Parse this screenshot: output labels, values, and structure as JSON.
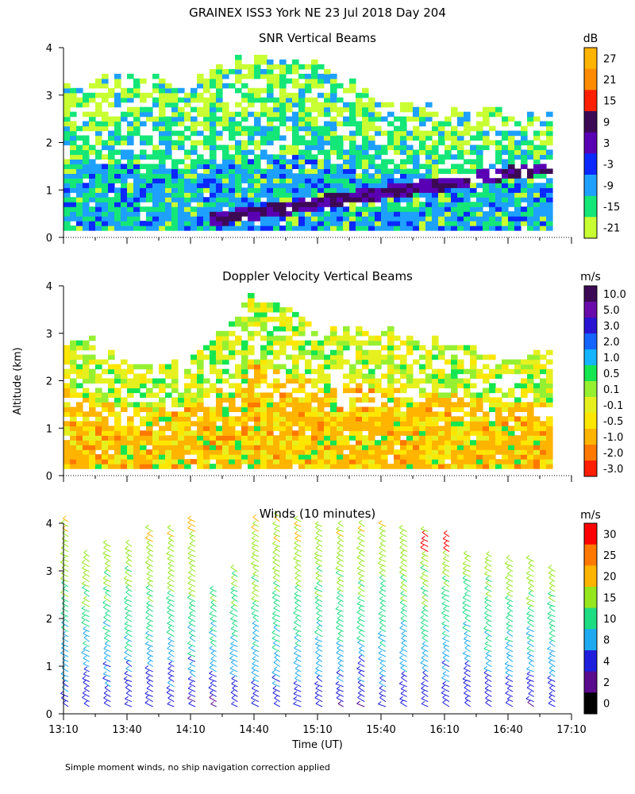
{
  "figure": {
    "title": "GRAINEX ISS3 York NE  23 Jul 2018 Day 204",
    "ylabel": "Altitude (km)",
    "xlabel": "Time (UT)",
    "footnote": "Simple moment winds, no ship navigation correction applied",
    "time_ticks": [
      "13:10",
      "13:40",
      "14:10",
      "14:40",
      "15:10",
      "15:40",
      "16:10",
      "16:40",
      "17:10"
    ],
    "alt_ticks": [
      "0",
      "1",
      "2",
      "3",
      "4"
    ]
  },
  "chart_data": [
    {
      "type": "heatmap",
      "title": "SNR Vertical Beams",
      "unit": "dB",
      "xlim": [
        "13:10",
        "17:10"
      ],
      "ylim": [
        0,
        4
      ],
      "colorbar_labels": [
        "27",
        "21",
        "15",
        "9",
        "3",
        "-3",
        "-9",
        "-15",
        "-21"
      ],
      "colorbar_colors": [
        "#ffb400",
        "#ff8c00",
        "#ff2000",
        "#3c0a55",
        "#5a00b4",
        "#0a28ff",
        "#1ea0ff",
        "#14e678",
        "#c8ff32"
      ],
      "data_top_km": {
        "13:10": 3.1,
        "13:40": 3.3,
        "14:10": 3.3,
        "14:40": 3.8,
        "15:10": 3.5,
        "15:40": 2.9,
        "16:10": 2.6,
        "16:40": 2.6,
        "17:00": 2.5
      },
      "notes": "Strong echo layer (3 to 15 dB) descending from about 1.1 km near 16:10 to 0.4 km near 14:30; weak echoes (-21 to -15 dB) above 2 km"
    },
    {
      "type": "heatmap",
      "title": "Doppler Velocity Vertical Beams",
      "unit": "m/s",
      "xlim": [
        "13:10",
        "17:10"
      ],
      "ylim": [
        0,
        4
      ],
      "colorbar_labels": [
        "10.0",
        "5.0",
        "3.0",
        "2.0",
        "1.0",
        "0.5",
        "0.1",
        "-0.1",
        "-0.5",
        "-1.0",
        "-2.0",
        "-3.0"
      ],
      "colorbar_colors": [
        "#3c0a55",
        "#6a0aaa",
        "#2814d2",
        "#1464ff",
        "#14b4ff",
        "#14e650",
        "#96f032",
        "#e6f01e",
        "#ffe600",
        "#ffb400",
        "#ff7800",
        "#ff1e00"
      ],
      "data_top_km": {
        "13:10": 3.1,
        "13:40": 2.3,
        "14:10": 2.3,
        "14:40": 3.8,
        "15:10": 3.0,
        "15:40": 3.0,
        "16:10": 2.8,
        "16:40": 2.5,
        "17:00": 2.5
      },
      "notes": "Mostly -0.5 to -1.0 m/s below 2 km, near -0.1 to 0.1 m/s aloft"
    },
    {
      "type": "scatter",
      "title": "Winds (10 minutes)",
      "unit": "m/s",
      "xlim": [
        "13:10",
        "17:10"
      ],
      "ylim": [
        0,
        4
      ],
      "colorbar_labels": [
        "30",
        "25",
        "20",
        "15",
        "10",
        "8",
        "4",
        "2",
        "0"
      ],
      "colorbar_colors": [
        "#ff0000",
        "#ff7800",
        "#ffb400",
        "#96e61e",
        "#1edc82",
        "#1eaaf0",
        "#1e1edc",
        "#5a0a8c",
        "#000000"
      ],
      "x": [
        "13:10",
        "13:20",
        "13:30",
        "13:40",
        "13:50",
        "14:00",
        "14:10",
        "14:20",
        "14:30",
        "14:40",
        "14:50",
        "15:00",
        "15:10",
        "15:20",
        "15:30",
        "15:40",
        "15:50",
        "16:00",
        "16:10",
        "16:20",
        "16:30",
        "16:40",
        "16:50",
        "17:00"
      ],
      "profile_top_km": [
        4.1,
        3.3,
        3.6,
        3.6,
        3.9,
        3.9,
        4.1,
        2.6,
        3.0,
        4.1,
        4.2,
        4.1,
        4.0,
        4.0,
        4.0,
        4.0,
        3.9,
        3.9,
        3.8,
        3.4,
        3.3,
        3.2,
        3.2,
        3.0
      ],
      "speed_profile": [
        {
          "alt_km": 0.3,
          "speed": 4
        },
        {
          "alt_km": 0.8,
          "speed": 6
        },
        {
          "alt_km": 1.3,
          "speed": 8
        },
        {
          "alt_km": 1.8,
          "speed": 10
        },
        {
          "alt_km": 2.5,
          "speed": 13
        },
        {
          "alt_km": 3.2,
          "speed": 15
        },
        {
          "alt_km": 3.8,
          "speed": 18
        }
      ],
      "strong_wind_region": {
        "time_range": [
          "16:00",
          "16:20"
        ],
        "alt_km": [
          3.4,
          3.8
        ],
        "speed": 30
      }
    }
  ]
}
